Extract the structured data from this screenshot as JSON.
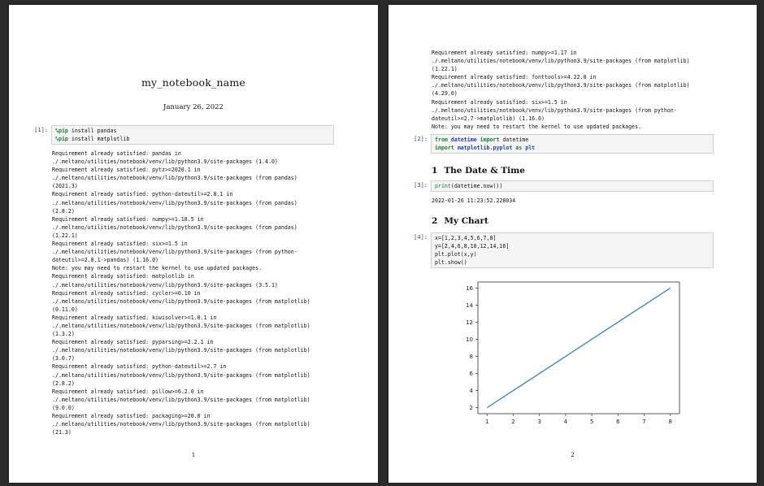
{
  "page1": {
    "title": "my_notebook_name",
    "date": "January 26, 2022",
    "cell1": {
      "prompt": "[1]:",
      "lines": [
        {
          "magic": "%pip",
          "rest": " install pandas"
        },
        {
          "magic": "%pip",
          "rest": " install matplotlib"
        }
      ]
    },
    "output_lines": [
      "Requirement already satisfied: pandas in",
      "./.meltano/utilities/notebook/venv/lib/python3.9/site-packages (1.4.0)",
      "Requirement already satisfied: pytz>=2020.1 in",
      "./.meltano/utilities/notebook/venv/lib/python3.9/site-packages (from pandas)",
      "(2021.3)",
      "Requirement already satisfied: python-dateutil>=2.8.1 in",
      "./.meltano/utilities/notebook/venv/lib/python3.9/site-packages (from pandas)",
      "(2.8.2)",
      "Requirement already satisfied: numpy>=1.18.5 in",
      "./.meltano/utilities/notebook/venv/lib/python3.9/site-packages (from pandas)",
      "(1.22.1)",
      "Requirement already satisfied: six>=1.5 in",
      "./.meltano/utilities/notebook/venv/lib/python3.9/site-packages (from python-",
      "dateutil>=2.8.1->pandas) (1.16.0)",
      "Note: you may need to restart the kernel to use updated packages.",
      "Requirement already satisfied: matplotlib in",
      "./.meltano/utilities/notebook/venv/lib/python3.9/site-packages (3.5.1)",
      "Requirement already satisfied: cycler>=0.10 in",
      "./.meltano/utilities/notebook/venv/lib/python3.9/site-packages (from matplotlib)",
      "(0.11.0)",
      "Requirement already satisfied: kiwisolver>=1.0.1 in",
      "./.meltano/utilities/notebook/venv/lib/python3.9/site-packages (from matplotlib)",
      "(1.3.2)",
      "Requirement already satisfied: pyparsing>=2.2.1 in",
      "./.meltano/utilities/notebook/venv/lib/python3.9/site-packages (from matplotlib)",
      "(3.0.7)",
      "Requirement already satisfied: python-dateutil>=2.7 in",
      "./.meltano/utilities/notebook/venv/lib/python3.9/site-packages (from matplotlib)",
      "(2.8.2)",
      "Requirement already satisfied: pillow>=6.2.0 in",
      "./.meltano/utilities/notebook/venv/lib/python3.9/site-packages (from matplotlib)",
      "(9.0.0)",
      "Requirement already satisfied: packaging>=20.0 in",
      "./.meltano/utilities/notebook/venv/lib/python3.9/site-packages (from matplotlib)",
      "(21.3)"
    ],
    "page_number": "1"
  },
  "page2": {
    "output_lines": [
      "Requirement already satisfied: numpy>=1.17 in",
      "./.meltano/utilities/notebook/venv/lib/python3.9/site-packages (from matplotlib)",
      "(1.22.1)",
      "Requirement already satisfied: fonttools>=4.22.0 in",
      "./.meltano/utilities/notebook/venv/lib/python3.9/site-packages (from matplotlib)",
      "(4.29.0)",
      "Requirement already satisfied: six>=1.5 in",
      "./.meltano/utilities/notebook/venv/lib/python3.9/site-packages (from python-",
      "dateutil>=2.7->matplotlib) (1.16.0)",
      "Note: you may need to restart the kernel to use updated packages."
    ],
    "cell2": {
      "prompt": "[2]:",
      "line1": {
        "kw1": "from",
        "mod1": "datetime",
        "kw2": "import",
        "name": "datetime"
      },
      "line2": {
        "kw1": "import",
        "mod1": "matplotlib.pyplot",
        "kw2": "as",
        "mod2": "plt"
      }
    },
    "heading1": {
      "num": "1",
      "text": "The Date & Time"
    },
    "cell3": {
      "prompt": "[3]:",
      "fn": "print",
      "rest": "(datetime.now())"
    },
    "cell3_output": "2022-01-26 11:23:52.228034",
    "heading2": {
      "num": "2",
      "text": "My Chart"
    },
    "cell4": {
      "prompt": "[4]:",
      "line1": "x=[1,2,3,4,5,6,7,8]",
      "line2": "y=[2,4,6,8,10,12,14,16]",
      "line3": "plt.plot(x,y)",
      "line4": "plt.show()"
    },
    "page_number": "2"
  },
  "chart_data": {
    "type": "line",
    "x": [
      1,
      2,
      3,
      4,
      5,
      6,
      7,
      8
    ],
    "series": [
      {
        "values": [
          2,
          4,
          6,
          8,
          10,
          12,
          14,
          16
        ],
        "color": "#3b82c4"
      }
    ],
    "xticks": [
      "1",
      "2",
      "3",
      "4",
      "5",
      "6",
      "7",
      "8"
    ],
    "yticks": [
      "2",
      "4",
      "6",
      "8",
      "10",
      "12",
      "14",
      "16"
    ],
    "xlim": [
      0.65,
      8.35
    ],
    "ylim": [
      1.3,
      16.7
    ],
    "grid": false,
    "title": "",
    "xlabel": "",
    "ylabel": ""
  }
}
